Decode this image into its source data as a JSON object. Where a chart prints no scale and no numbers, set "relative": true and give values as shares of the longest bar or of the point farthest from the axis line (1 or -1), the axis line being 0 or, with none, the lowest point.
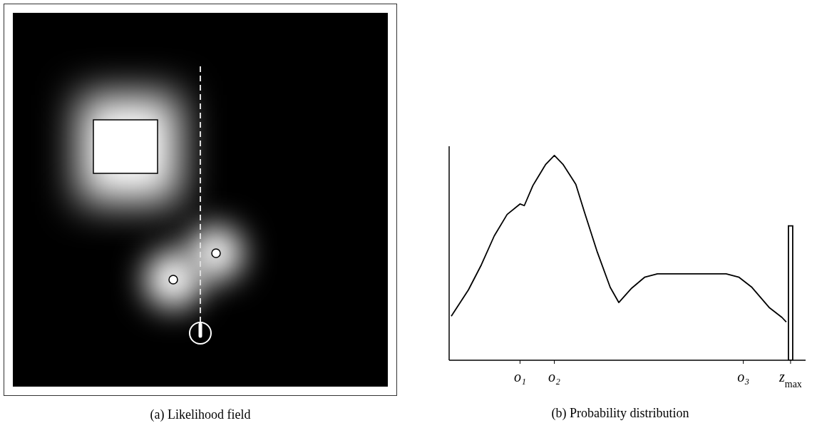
{
  "chart_data": [
    {
      "type": "other",
      "title": "(a) Likelihood field"
    },
    {
      "type": "line",
      "title": "(b) Probability distribution",
      "relative": true,
      "marker": "none",
      "line_style": "solid",
      "tick_labels": "x",
      "categories": [
        null,
        null,
        null,
        null,
        null,
        null,
        null,
        null,
        null,
        null,
        null,
        null,
        null,
        null,
        null,
        null,
        "o₁",
        null,
        null,
        null,
        null,
        null,
        null,
        null,
        "o₂",
        null,
        null,
        null,
        null,
        null,
        null,
        null,
        null,
        null,
        null,
        null,
        null,
        null,
        null,
        null,
        null,
        null,
        null,
        null,
        null,
        null,
        null,
        null,
        null,
        null,
        null,
        null,
        null,
        null,
        null,
        null,
        null,
        null,
        null,
        null,
        null,
        null,
        null,
        null,
        null,
        null,
        null,
        null,
        "o₃",
        null,
        null,
        null,
        null,
        null,
        null,
        null,
        null,
        null,
        null,
        "z$_{max}$",
        null,
        null,
        null
      ],
      "series": [
        {
          "type": "line",
          "color": "#000000",
          "values": [
            0.215,
            null,
            null,
            null,
            0.344,
            null,
            null,
            0.466,
            null,
            null,
            0.607,
            null,
            null,
            0.712,
            null,
            null,
            0.763,
            0.755,
            null,
            0.853,
            null,
            null,
            0.957,
            null,
            1,
            null,
            0.957,
            null,
            null,
            0.859,
            null,
            0.724,
            null,
            null,
            0.528,
            null,
            null,
            0.356,
            null,
            0.282,
            null,
            null,
            0.352,
            null,
            null,
            0.405,
            null,
            null,
            0.422,
            null,
            null,
            null,
            null,
            null,
            null,
            null,
            null,
            null,
            null,
            null,
            null,
            null,
            null,
            null,
            0.422,
            null,
            null,
            0.405,
            null,
            null,
            0.356,
            null,
            null,
            null,
            0.258,
            null,
            null,
            0.209,
            0.187,
            null,
            null,
            null,
            null
          ]
        },
        {
          "type": "bar",
          "color": "#000000",
          "values": [
            null,
            null,
            null,
            null,
            null,
            null,
            null,
            null,
            null,
            null,
            null,
            null,
            null,
            null,
            null,
            null,
            null,
            null,
            null,
            null,
            null,
            null,
            null,
            null,
            null,
            null,
            null,
            null,
            null,
            null,
            null,
            null,
            null,
            null,
            null,
            null,
            null,
            null,
            null,
            null,
            null,
            null,
            null,
            null,
            null,
            null,
            null,
            null,
            null,
            null,
            null,
            null,
            null,
            null,
            null,
            null,
            null,
            null,
            null,
            null,
            null,
            null,
            null,
            null,
            null,
            null,
            null,
            null,
            null,
            null,
            null,
            null,
            null,
            null,
            null,
            null,
            null,
            null,
            null,
            0.656,
            null,
            null,
            null
          ]
        }
      ]
    }
  ]
}
